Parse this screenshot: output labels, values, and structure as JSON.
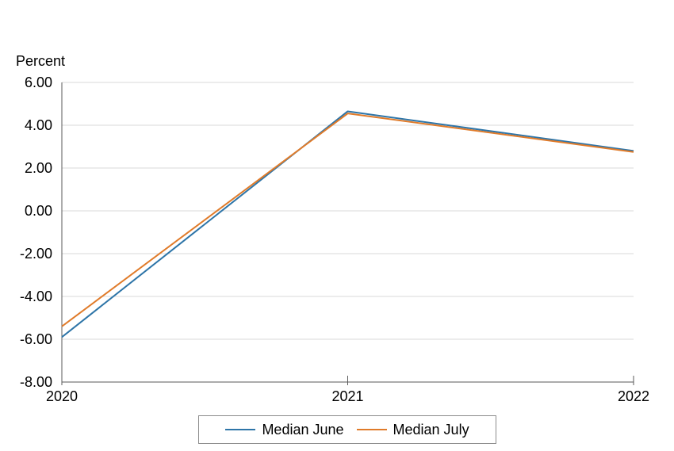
{
  "chart_data": {
    "type": "line",
    "title": "",
    "xlabel": "",
    "ylabel": "Percent",
    "x": [
      "2020",
      "2021",
      "2022"
    ],
    "ylim": [
      -8,
      6
    ],
    "yticks": [
      "6.00",
      "4.00",
      "2.00",
      "0.00",
      "-2.00",
      "-4.00",
      "-6.00",
      "-8.00"
    ],
    "ytick_values": [
      6,
      4,
      2,
      0,
      -2,
      -4,
      -6,
      -8
    ],
    "grid": true,
    "legend_position": "bottom-center",
    "series": [
      {
        "name": "Median June",
        "values": [
          -5.9,
          4.65,
          2.8
        ],
        "color": "#2e75a8"
      },
      {
        "name": "Median July",
        "values": [
          -5.4,
          4.55,
          2.75
        ],
        "color": "#e07b2a"
      }
    ]
  }
}
